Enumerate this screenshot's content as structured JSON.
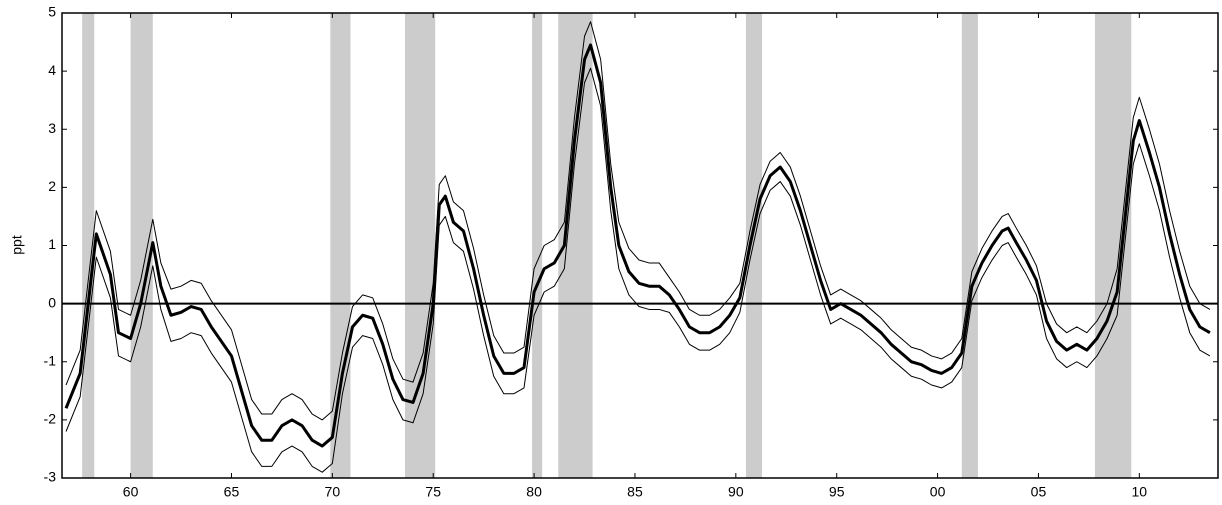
{
  "chart_data": {
    "type": "line",
    "y_label": "ppt",
    "xlim": [
      1956.6,
      2013.9
    ],
    "ylim": [
      -3,
      5
    ],
    "yticks": [
      -3,
      -2,
      -1,
      0,
      1,
      2,
      3,
      4,
      5
    ],
    "xticks": [
      {
        "value": 1960,
        "label": "60"
      },
      {
        "value": 1965,
        "label": "65"
      },
      {
        "value": 1970,
        "label": "70"
      },
      {
        "value": 1975,
        "label": "75"
      },
      {
        "value": 1980,
        "label": "80"
      },
      {
        "value": 1985,
        "label": "85"
      },
      {
        "value": 1990,
        "label": "90"
      },
      {
        "value": 1995,
        "label": "95"
      },
      {
        "value": 2000,
        "label": "00"
      },
      {
        "value": 2005,
        "label": "05"
      },
      {
        "value": 2010,
        "label": "10"
      }
    ],
    "shaded_regions": [
      [
        1957.6,
        1958.2
      ],
      [
        1960.0,
        1961.1
      ],
      [
        1969.9,
        1970.9
      ],
      [
        1973.6,
        1975.1
      ],
      [
        1979.9,
        1980.4
      ],
      [
        1981.2,
        1982.9
      ],
      [
        1990.5,
        1991.3
      ],
      [
        2001.2,
        2002.0
      ],
      [
        2007.8,
        2009.6
      ]
    ],
    "shade_color": "#cccccc",
    "zero_line": true,
    "x": [
      1956.8,
      1957.5,
      1958,
      1958.3,
      1959,
      1959.4,
      1960,
      1960.5,
      1961.1,
      1961.5,
      1962,
      1962.5,
      1963,
      1963.5,
      1964,
      1965,
      1965.5,
      1966,
      1966.5,
      1967,
      1967.5,
      1968,
      1968.5,
      1969,
      1969.5,
      1970,
      1970.5,
      1971,
      1971.5,
      1972,
      1972.5,
      1973,
      1973.5,
      1974,
      1974.5,
      1975,
      1975.3,
      1975.6,
      1976,
      1976.5,
      1977,
      1977.5,
      1978,
      1978.5,
      1979,
      1979.5,
      1980,
      1980.5,
      1981,
      1981.5,
      1982,
      1982.5,
      1982.8,
      1983.3,
      1983.8,
      1984.2,
      1984.7,
      1985.2,
      1985.7,
      1986.2,
      1986.7,
      1987.2,
      1987.7,
      1988.2,
      1988.7,
      1989.2,
      1989.7,
      1990.2,
      1990.7,
      1991.2,
      1991.7,
      1992.2,
      1992.7,
      1993.2,
      1993.7,
      1994.2,
      1994.7,
      1995.2,
      1995.7,
      1996.2,
      1996.7,
      1997.2,
      1997.7,
      1998.2,
      1998.7,
      1999.2,
      1999.7,
      2000.2,
      2000.7,
      2001.2,
      2001.7,
      2002.2,
      2002.7,
      2003.2,
      2003.5,
      2003.9,
      2004.4,
      2004.9,
      2005.4,
      2005.9,
      2006.4,
      2006.9,
      2007.4,
      2007.9,
      2008.4,
      2008.9,
      2009.3,
      2009.7,
      2010.0,
      2010.5,
      2011.0,
      2011.5,
      2012.0,
      2012.5,
      2013.0,
      2013.5
    ],
    "series": [
      {
        "color": "#000000",
        "width": 1,
        "values": [
          -1.4,
          -0.8,
          0.7,
          1.6,
          0.9,
          -0.1,
          -0.2,
          0.4,
          1.45,
          0.7,
          0.25,
          0.3,
          0.4,
          0.35,
          0.05,
          -0.45,
          -1.05,
          -1.65,
          -1.9,
          -1.9,
          -1.65,
          -1.55,
          -1.65,
          -1.9,
          -2.0,
          -1.85,
          -0.85,
          -0.05,
          0.15,
          0.1,
          -0.35,
          -0.95,
          -1.3,
          -1.35,
          -0.85,
          0.35,
          2.05,
          2.2,
          1.75,
          1.6,
          0.95,
          0.15,
          -0.55,
          -0.85,
          -0.85,
          -0.75,
          0.6,
          1.0,
          1.1,
          1.4,
          3.2,
          4.6,
          4.85,
          4.2,
          2.4,
          1.4,
          0.95,
          0.75,
          0.7,
          0.7,
          0.45,
          0.2,
          -0.1,
          -0.2,
          -0.2,
          -0.1,
          0.1,
          0.35,
          1.25,
          2.05,
          2.45,
          2.6,
          2.35,
          1.85,
          1.25,
          0.65,
          0.15,
          0.25,
          0.15,
          0.05,
          -0.1,
          -0.25,
          -0.45,
          -0.6,
          -0.75,
          -0.8,
          -0.9,
          -0.95,
          -0.85,
          -0.6,
          0.55,
          0.95,
          1.25,
          1.5,
          1.55,
          1.3,
          1.0,
          0.65,
          0.0,
          -0.35,
          -0.5,
          -0.4,
          -0.5,
          -0.3,
          0.0,
          0.6,
          1.9,
          3.2,
          3.55,
          3.0,
          2.4,
          1.6,
          0.9,
          0.3,
          0.0,
          -0.1
        ]
      },
      {
        "color": "#000000",
        "width": 1,
        "values": [
          -2.2,
          -1.6,
          -0.1,
          0.8,
          0.1,
          -0.9,
          -1.0,
          -0.4,
          0.65,
          -0.1,
          -0.65,
          -0.6,
          -0.5,
          -0.55,
          -0.85,
          -1.35,
          -1.95,
          -2.55,
          -2.8,
          -2.8,
          -2.55,
          -2.45,
          -2.55,
          -2.8,
          -2.9,
          -2.75,
          -1.55,
          -0.75,
          -0.55,
          -0.6,
          -1.05,
          -1.65,
          -2.0,
          -2.05,
          -1.55,
          -0.35,
          1.35,
          1.5,
          1.05,
          0.9,
          0.25,
          -0.55,
          -1.25,
          -1.55,
          -1.55,
          -1.45,
          -0.2,
          0.2,
          0.3,
          0.6,
          2.4,
          3.8,
          4.05,
          3.4,
          1.6,
          0.6,
          0.15,
          -0.05,
          -0.1,
          -0.1,
          -0.15,
          -0.4,
          -0.7,
          -0.8,
          -0.8,
          -0.7,
          -0.5,
          -0.15,
          0.75,
          1.55,
          1.95,
          2.1,
          1.85,
          1.35,
          0.75,
          0.15,
          -0.35,
          -0.25,
          -0.35,
          -0.45,
          -0.6,
          -0.75,
          -0.95,
          -1.1,
          -1.25,
          -1.3,
          -1.4,
          -1.45,
          -1.35,
          -1.1,
          0.05,
          0.45,
          0.75,
          1.0,
          1.05,
          0.8,
          0.5,
          0.15,
          -0.6,
          -0.95,
          -1.1,
          -1.0,
          -1.1,
          -0.9,
          -0.6,
          -0.2,
          1.1,
          2.4,
          2.75,
          2.2,
          1.6,
          0.8,
          0.1,
          -0.5,
          -0.8,
          -0.9
        ]
      },
      {
        "color": "#000000",
        "width": 3,
        "values": [
          -1.8,
          -1.2,
          0.3,
          1.2,
          0.5,
          -0.5,
          -0.6,
          0.0,
          1.05,
          0.3,
          -0.2,
          -0.15,
          -0.05,
          -0.1,
          -0.4,
          -0.9,
          -1.5,
          -2.1,
          -2.35,
          -2.35,
          -2.1,
          -2.0,
          -2.1,
          -2.35,
          -2.45,
          -2.3,
          -1.2,
          -0.4,
          -0.2,
          -0.25,
          -0.7,
          -1.3,
          -1.65,
          -1.7,
          -1.2,
          0.0,
          1.7,
          1.85,
          1.4,
          1.25,
          0.6,
          -0.2,
          -0.9,
          -1.2,
          -1.2,
          -1.1,
          0.2,
          0.6,
          0.7,
          1.0,
          2.8,
          4.2,
          4.45,
          3.8,
          2.0,
          1.0,
          0.55,
          0.35,
          0.3,
          0.3,
          0.15,
          -0.1,
          -0.4,
          -0.5,
          -0.5,
          -0.4,
          -0.2,
          0.1,
          1.0,
          1.8,
          2.2,
          2.35,
          2.1,
          1.6,
          1.0,
          0.4,
          -0.1,
          0.0,
          -0.1,
          -0.2,
          -0.35,
          -0.5,
          -0.7,
          -0.85,
          -1.0,
          -1.05,
          -1.15,
          -1.2,
          -1.1,
          -0.85,
          0.3,
          0.7,
          1.0,
          1.25,
          1.3,
          1.05,
          0.75,
          0.4,
          -0.3,
          -0.65,
          -0.8,
          -0.7,
          -0.8,
          -0.6,
          -0.3,
          0.2,
          1.5,
          2.8,
          3.15,
          2.6,
          2.0,
          1.2,
          0.5,
          -0.1,
          -0.4,
          -0.5
        ]
      }
    ]
  }
}
